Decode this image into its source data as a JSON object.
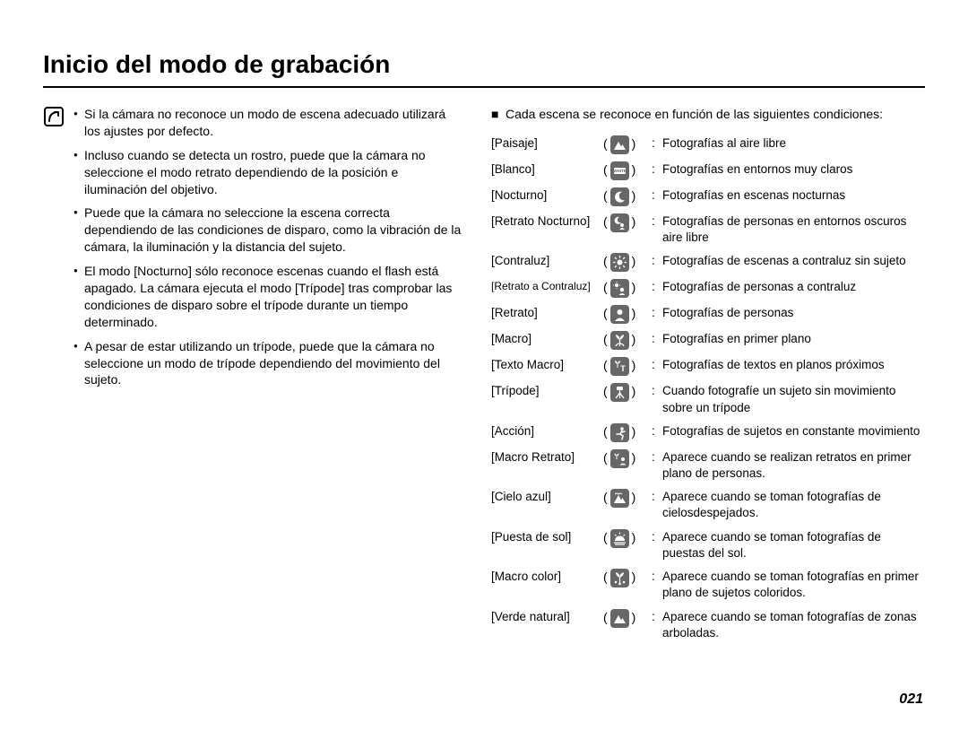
{
  "title": "Inicio del modo de grabación",
  "page_number": "021",
  "colors": {
    "text": "#000000",
    "bg": "#ffffff",
    "icon_box": "#676767",
    "icon_fg": "#ffffff",
    "rule": "#000000"
  },
  "note_bullets": [
    "Si la cámara no reconoce un modo de escena adecuado utilizará los ajustes por defecto.",
    "Incluso cuando se detecta un rostro, puede que la cámara no seleccione el modo retrato dependiendo de la posición e iluminación del objetivo.",
    "Puede que la cámara no seleccione la escena correcta dependiendo de las condiciones de disparo, como la vibración de la cámara, la iluminación y la distancia del sujeto.",
    "El modo [Nocturno] sólo reconoce escenas cuando el flash está apagado. La cámara ejecuta el modo [Trípode] tras comprobar las condiciones de disparo sobre el trípode durante un tiempo determinado.",
    "A pesar de estar utilizando un trípode, puede que la cámara no seleccione un modo de trípode dependiendo del movimiento del sujeto."
  ],
  "scenes_intro": "Cada escena se reconoce en función de las siguientes condiciones:",
  "scenes": [
    {
      "label": "[Paisaje]",
      "icon": "landscape",
      "desc": "Fotografías al aire libre"
    },
    {
      "label": "[Blanco]",
      "icon": "white",
      "desc": "Fotografías en entornos muy claros"
    },
    {
      "label": "[Nocturno]",
      "icon": "night",
      "desc": "Fotografías en escenas nocturnas"
    },
    {
      "label": "[Retrato Nocturno]",
      "icon": "night-portrait",
      "desc": "Fotografías de personas en entornos oscuros aire libre"
    },
    {
      "label": "[Contraluz]",
      "icon": "backlight",
      "desc": "Fotografías de escenas a contraluz sin sujeto"
    },
    {
      "label": "[Retrato a Contraluz]",
      "icon": "backlight-portrait",
      "desc": "Fotografías de personas a contraluz"
    },
    {
      "label": "[Retrato]",
      "icon": "portrait",
      "desc": "Fotografías de personas"
    },
    {
      "label": "[Macro]",
      "icon": "macro",
      "desc": "Fotografías en primer plano"
    },
    {
      "label": "[Texto Macro]",
      "icon": "macro-text",
      "desc": "Fotografías de textos en planos próximos"
    },
    {
      "label": "[Trípode]",
      "icon": "tripod",
      "desc": "Cuando fotografíe un sujeto sin movimiento sobre un trípode"
    },
    {
      "label": "[Acción]",
      "icon": "action",
      "desc": "Fotografías de sujetos en constante movimiento"
    },
    {
      "label": "[Macro Retrato]",
      "icon": "macro-portrait",
      "desc": "Aparece cuando se realizan retratos en primer plano de personas."
    },
    {
      "label": "[Cielo azul]",
      "icon": "blue-sky",
      "desc": "Aparece cuando se toman fotografías de cielosdespejados."
    },
    {
      "label": "[Puesta de sol]",
      "icon": "sunset",
      "desc": "Aparece cuando se toman fotografías de puestas del sol."
    },
    {
      "label": "[Macro color]",
      "icon": "macro-color",
      "desc": "Aparece cuando se toman fotografías en primer plano de sujetos coloridos."
    },
    {
      "label": "[Verde natural]",
      "icon": "green",
      "desc": "Aparece cuando se toman fotografías de zonas arboladas."
    }
  ]
}
